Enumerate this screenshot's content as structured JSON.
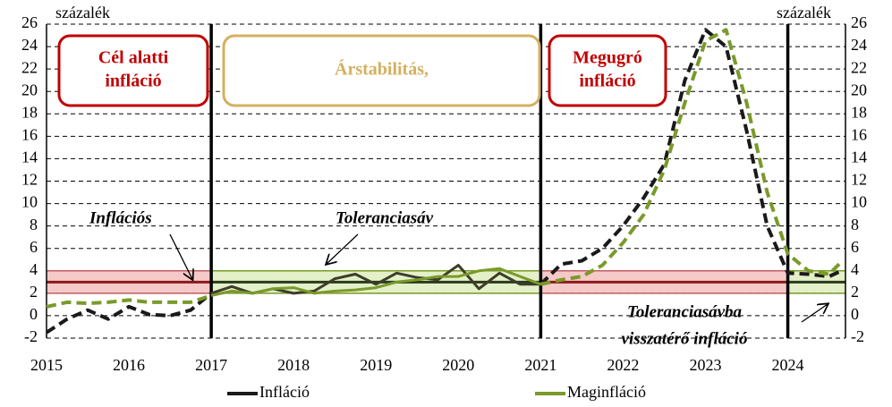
{
  "chart_data": {
    "type": "line",
    "y_unit_left": "százalék",
    "y_unit_right": "százalék",
    "x": [
      2015,
      2015.25,
      2015.5,
      2015.75,
      2016,
      2016.25,
      2016.5,
      2016.75,
      2017,
      2017.25,
      2017.5,
      2017.75,
      2018,
      2018.25,
      2018.5,
      2018.75,
      2019,
      2019.25,
      2019.5,
      2019.75,
      2020,
      2020.25,
      2020.5,
      2020.75,
      2021,
      2021.25,
      2021.5,
      2021.75,
      2022,
      2022.25,
      2022.5,
      2022.75,
      2023,
      2023.25,
      2023.5,
      2023.75,
      2024,
      2024.25,
      2024.5,
      2024.65
    ],
    "series": [
      {
        "name": "Infláció",
        "color": "#1a1a1a",
        "solid_color": "#3d3d2b",
        "values": [
          -1.5,
          -0.3,
          0.5,
          -0.3,
          0.8,
          0.1,
          0.0,
          0.5,
          2.0,
          2.6,
          2.0,
          2.4,
          2.0,
          2.2,
          3.3,
          3.7,
          2.8,
          3.8,
          3.4,
          3.2,
          4.5,
          2.4,
          3.8,
          2.8,
          2.8,
          4.6,
          4.9,
          6.0,
          8.0,
          10.5,
          13.5,
          21.0,
          25.5,
          24.0,
          16.5,
          8.0,
          3.8,
          3.7,
          3.5,
          4.0
        ]
      },
      {
        "name": "Maginfláció",
        "color": "#7a9a2a",
        "solid_color": "#7a9a2a",
        "values": [
          0.8,
          1.2,
          1.1,
          1.2,
          1.4,
          1.2,
          1.2,
          1.2,
          1.8,
          2.2,
          2.0,
          2.4,
          2.5,
          2.0,
          2.2,
          2.3,
          2.5,
          3.0,
          3.2,
          3.5,
          3.5,
          4.0,
          4.2,
          3.5,
          2.8,
          3.2,
          3.5,
          4.5,
          6.5,
          9.0,
          13.0,
          19.0,
          24.5,
          25.5,
          19.0,
          11.0,
          5.5,
          4.0,
          3.7,
          4.8
        ]
      }
    ],
    "xlim": [
      2015,
      2024.7
    ],
    "xticks": [
      2015,
      2016,
      2017,
      2018,
      2019,
      2020,
      2021,
      2022,
      2023,
      2024
    ],
    "ylim": [
      -2,
      26
    ],
    "yticks": [
      -2,
      0,
      2,
      4,
      6,
      8,
      10,
      12,
      14,
      16,
      18,
      20,
      22,
      24,
      26
    ],
    "y2lim": [
      -2,
      26
    ],
    "y2ticks": [
      -2,
      0,
      2,
      4,
      6,
      8,
      10,
      12,
      14,
      16,
      18,
      20,
      22,
      24,
      26
    ],
    "grid": true,
    "dividers": [
      2017,
      2021,
      2024
    ],
    "target": 3,
    "tolerance_band": [
      2,
      4
    ],
    "bands": [
      {
        "from": 2015,
        "to": 2017,
        "color": "#f6c9c9"
      },
      {
        "from": 2017,
        "to": 2021,
        "color": "#e3f0c8"
      },
      {
        "from": 2021,
        "to": 2024,
        "color": "#f6c9c9"
      },
      {
        "from": 2024,
        "to": 2024.7,
        "color": "#e3f0c8"
      }
    ],
    "boxes": [
      {
        "lines": [
          "Cél alatti",
          "infláció"
        ],
        "color": "#c00000"
      },
      {
        "lines": [
          "Árstabilitás,"
        ],
        "color": "#d4b060"
      },
      {
        "lines": [
          "Megugró",
          "infláció"
        ],
        "color": "#c00000"
      }
    ],
    "annotations": [
      "Inflációs",
      "Toleranciasáv",
      "Toleranciasávba",
      "visszatérő infláció"
    ]
  }
}
